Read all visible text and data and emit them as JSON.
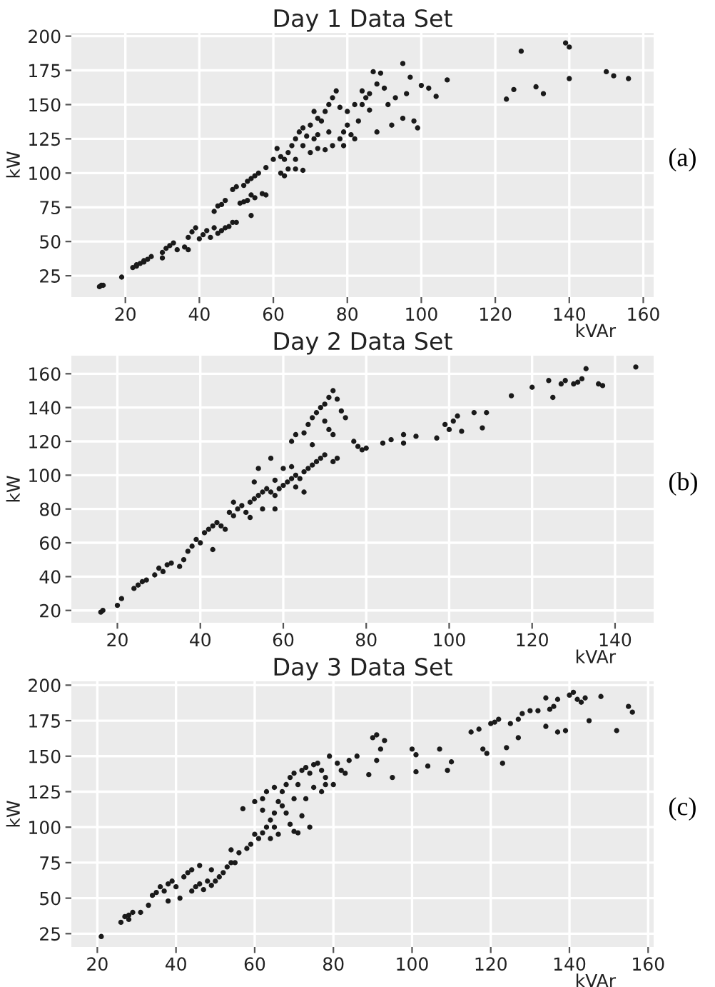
{
  "chart_data": [
    {
      "type": "scatter",
      "title": "Day 1 Data Set",
      "xlabel": "kVAr",
      "ylabel": "kW",
      "annotations": [
        "(a)"
      ],
      "color": "#1a1a1a",
      "marker": "circle",
      "grid": true,
      "xlim": [
        5.4,
        162.8
      ],
      "ylim": [
        9.4,
        202.4
      ],
      "xticks": [
        20,
        40,
        60,
        80,
        100,
        120,
        140,
        160
      ],
      "yticks": [
        25,
        50,
        75,
        100,
        125,
        150,
        175,
        200
      ],
      "x": [
        13,
        13.5,
        14,
        19,
        22,
        23,
        24,
        25,
        26,
        27,
        23,
        25,
        30,
        31,
        32,
        33,
        30,
        34,
        36,
        37,
        37,
        38,
        39,
        40,
        41,
        42,
        43,
        44,
        45,
        46,
        47,
        48,
        49,
        50,
        44,
        45,
        46,
        47,
        49,
        50,
        52,
        53,
        54,
        55,
        56,
        51,
        52,
        53,
        54,
        55,
        57,
        58,
        54,
        58,
        60,
        61,
        62,
        63,
        64,
        65,
        66,
        67,
        68,
        69,
        70,
        71,
        72,
        73,
        74,
        75,
        76,
        77,
        62,
        64,
        66,
        68,
        63,
        70,
        72,
        74,
        76,
        78,
        79,
        80,
        81,
        82,
        83,
        84,
        85,
        86,
        87,
        88,
        89,
        90,
        91,
        92,
        93,
        95,
        95,
        96,
        97,
        98,
        99,
        100,
        102,
        104,
        107,
        123,
        125,
        127,
        131,
        133,
        139,
        140,
        140,
        150,
        152,
        156,
        80,
        82,
        78,
        79,
        75,
        66,
        68,
        71,
        84,
        86,
        88,
        72
      ],
      "values": [
        17,
        18,
        18,
        24,
        31,
        32,
        34,
        35,
        37,
        39,
        33,
        36,
        42,
        45,
        47,
        49,
        38,
        44,
        46,
        44,
        53,
        57,
        60,
        52,
        55,
        58,
        53,
        60,
        56,
        58,
        60,
        61,
        64,
        64,
        72,
        76,
        77,
        80,
        88,
        90,
        91,
        94,
        96,
        98,
        100,
        78,
        79,
        80,
        84,
        82,
        85,
        84,
        69,
        104,
        110,
        118,
        112,
        110,
        115,
        120,
        125,
        130,
        120,
        127,
        135,
        125,
        140,
        138,
        145,
        150,
        155,
        160,
        100,
        103,
        103,
        102,
        98,
        115,
        118,
        117,
        120,
        125,
        130,
        135,
        128,
        125,
        138,
        150,
        155,
        158,
        174,
        165,
        173,
        162,
        150,
        135,
        155,
        180,
        140,
        158,
        170,
        138,
        133,
        164,
        162,
        156,
        168,
        154,
        161,
        189,
        163,
        158,
        195,
        192,
        169,
        174,
        171,
        169,
        145,
        150,
        148,
        120,
        130,
        110,
        133,
        145,
        160,
        146,
        130,
        128
      ]
    },
    {
      "type": "scatter",
      "title": "Day 2 Data Set",
      "xlabel": "kVAr",
      "ylabel": "kW",
      "annotations": [
        "(b)"
      ],
      "color": "#1a1a1a",
      "marker": "circle",
      "grid": true,
      "xlim": [
        8.9,
        149.3
      ],
      "ylim": [
        12.7,
        170.7
      ],
      "xticks": [
        20,
        40,
        60,
        80,
        100,
        120,
        140
      ],
      "yticks": [
        20,
        40,
        60,
        80,
        100,
        120,
        140,
        160
      ],
      "x": [
        16,
        16.5,
        20,
        21,
        24,
        25,
        26,
        27,
        29,
        30,
        31,
        32,
        33,
        35,
        36,
        37,
        38,
        39,
        40,
        41,
        42,
        43,
        44,
        45,
        46,
        47,
        48,
        49,
        50,
        51,
        52,
        53,
        54,
        55,
        56,
        57,
        58,
        59,
        60,
        61,
        62,
        63,
        64,
        65,
        66,
        67,
        68,
        69,
        70,
        72,
        73,
        43,
        48,
        52,
        55,
        57,
        58,
        60,
        62,
        63,
        65,
        62,
        63,
        65,
        66,
        67,
        68,
        69,
        70,
        71,
        72,
        73,
        74,
        75,
        70,
        71,
        72,
        77,
        78,
        79,
        80,
        84,
        86,
        89,
        89,
        92,
        97,
        99,
        100,
        101,
        102,
        103,
        106,
        108,
        109,
        115,
        120,
        124,
        125,
        127,
        128,
        130,
        131,
        132,
        133,
        136,
        137,
        145,
        58,
        53,
        54,
        67
      ],
      "values": [
        19,
        20,
        23,
        27,
        33,
        35,
        37,
        38,
        41,
        45,
        43,
        47,
        48,
        46,
        50,
        55,
        58,
        62,
        60,
        66,
        68,
        70,
        72,
        70,
        68,
        78,
        76,
        80,
        82,
        78,
        84,
        86,
        88,
        90,
        92,
        90,
        88,
        92,
        94,
        96,
        98,
        100,
        98,
        102,
        104,
        106,
        108,
        110,
        112,
        108,
        110,
        56,
        84,
        75,
        80,
        110,
        80,
        104,
        105,
        93,
        90,
        120,
        124,
        125,
        130,
        134,
        137,
        140,
        142,
        146,
        150,
        145,
        138,
        134,
        132,
        127,
        124,
        120,
        117,
        115,
        116,
        119,
        121,
        124,
        119,
        123,
        122,
        130,
        127,
        132,
        135,
        126,
        137,
        128,
        137,
        147,
        152,
        156,
        146,
        154,
        156,
        154,
        155,
        157,
        163,
        154,
        153,
        164,
        97,
        96,
        104,
        118
      ]
    },
    {
      "type": "scatter",
      "title": "Day 3 Data Set",
      "xlabel": "kVAr",
      "ylabel": "kW",
      "annotations": [
        "(c)"
      ],
      "color": "#1a1a1a",
      "marker": "circle",
      "grid": true,
      "xlim": [
        13.4,
        161.4
      ],
      "ylim": [
        15.6,
        202.7
      ],
      "xticks": [
        20,
        40,
        60,
        80,
        100,
        120,
        140,
        160
      ],
      "yticks": [
        25,
        50,
        75,
        100,
        125,
        150,
        175,
        200
      ],
      "x": [
        21,
        26,
        27,
        28,
        29,
        28,
        31,
        33,
        34,
        35,
        36,
        37,
        38,
        39,
        40,
        41,
        42,
        43,
        44,
        45,
        46,
        47,
        48,
        49,
        50,
        51,
        52,
        53,
        54,
        55,
        44,
        38,
        49,
        46,
        54,
        56,
        58,
        59,
        60,
        61,
        62,
        63,
        64,
        65,
        66,
        67,
        68,
        69,
        70,
        71,
        72,
        73,
        74,
        75,
        76,
        77,
        78,
        79,
        80,
        81,
        82,
        83,
        84,
        86,
        57,
        60,
        62,
        63,
        64,
        65,
        66,
        67,
        68,
        69,
        70,
        71,
        72,
        73,
        74,
        75,
        77,
        78,
        62,
        65,
        70,
        89,
        90,
        91,
        92,
        93,
        91,
        95,
        100,
        101,
        101,
        104,
        107,
        109,
        110,
        115,
        117,
        118,
        119,
        120,
        121,
        122,
        123,
        124,
        125,
        127,
        128,
        130,
        132,
        134,
        135,
        136,
        137,
        137,
        139,
        140,
        141,
        142,
        143,
        144,
        145,
        148,
        152,
        155,
        156,
        134,
        127
      ],
      "values": [
        23,
        33,
        37,
        38,
        40,
        35,
        40,
        45,
        52,
        54,
        58,
        55,
        60,
        62,
        58,
        50,
        65,
        68,
        70,
        58,
        60,
        56,
        62,
        70,
        62,
        65,
        68,
        72,
        75,
        75,
        55,
        48,
        59,
        73,
        84,
        82,
        85,
        88,
        95,
        92,
        96,
        100,
        92,
        110,
        118,
        125,
        130,
        135,
        138,
        130,
        140,
        142,
        138,
        144,
        145,
        140,
        135,
        150,
        130,
        145,
        140,
        138,
        147,
        150,
        113,
        118,
        112,
        125,
        105,
        100,
        95,
        115,
        110,
        102,
        97,
        96,
        108,
        120,
        100,
        128,
        125,
        130,
        120,
        128,
        120,
        137,
        163,
        165,
        155,
        161,
        147,
        135,
        155,
        151,
        139,
        143,
        155,
        140,
        146,
        167,
        169,
        155,
        152,
        173,
        174,
        176,
        145,
        156,
        173,
        163,
        180,
        182,
        182,
        191,
        183,
        185,
        190,
        167,
        168,
        193,
        195,
        190,
        188,
        191,
        175,
        192,
        168,
        185,
        181,
        171,
        176
      ]
    }
  ]
}
